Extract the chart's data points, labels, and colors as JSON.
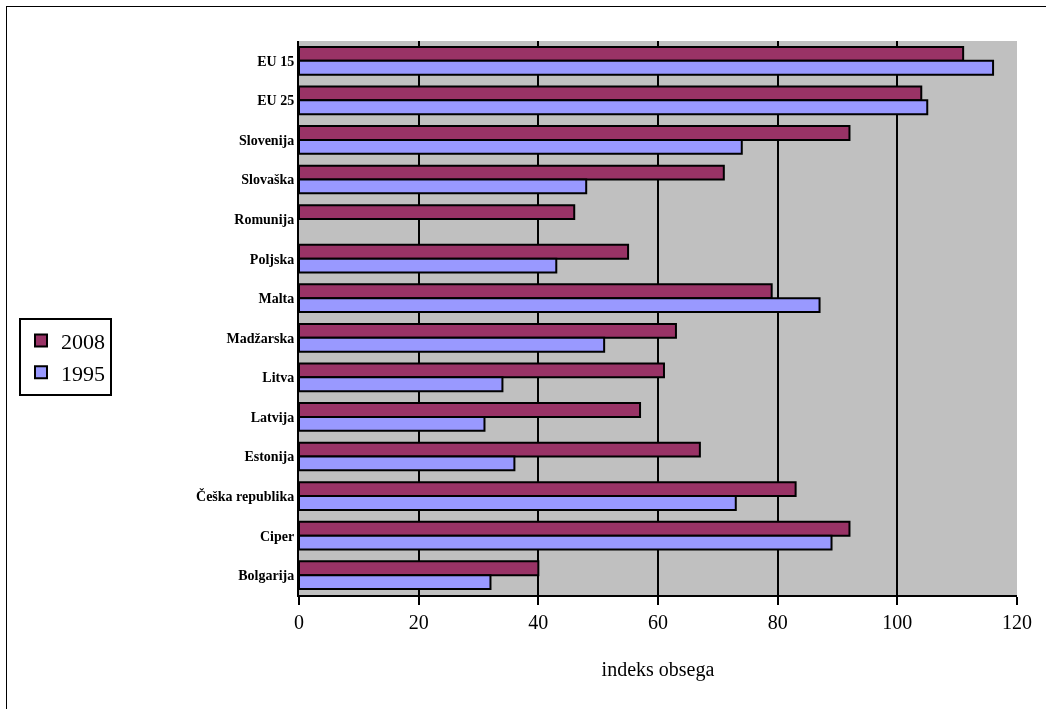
{
  "chart_data": {
    "type": "bar",
    "orientation": "horizontal",
    "xlabel": "indeks obsega",
    "categories": [
      "EU 15",
      "EU 25",
      "Slovenija",
      "Slovaška",
      "Romunija",
      "Poljska",
      "Malta",
      "Madžarska",
      "Litva",
      "Latvija",
      "Estonija",
      "Češka republika",
      "Ciper",
      "Bolgarija"
    ],
    "series": [
      {
        "name": "2008",
        "color": "#993366",
        "values": [
          111,
          104,
          92,
          71,
          46,
          55,
          79,
          63,
          61,
          57,
          67,
          83,
          92,
          40
        ]
      },
      {
        "name": "1995",
        "color": "#9999ff",
        "values": [
          116,
          105,
          74,
          48,
          null,
          43,
          87,
          51,
          34,
          31,
          36,
          73,
          89,
          32
        ]
      }
    ],
    "xlim": [
      0,
      120
    ],
    "xticks": [
      0,
      20,
      40,
      60,
      80,
      100,
      120
    ],
    "grid": "x",
    "legend": "left"
  }
}
